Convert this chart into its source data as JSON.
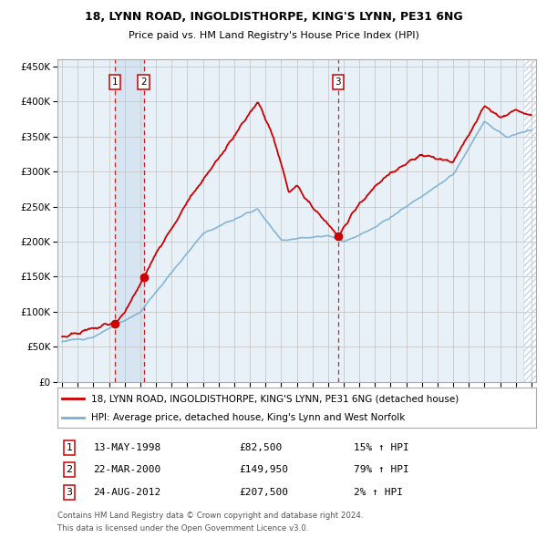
{
  "title": "18, LYNN ROAD, INGOLDISTHORPE, KING'S LYNN, PE31 6NG",
  "subtitle": "Price paid vs. HM Land Registry's House Price Index (HPI)",
  "transactions": [
    {
      "num": 1,
      "date": "13-MAY-1998",
      "price": 82500,
      "year": 1998.37,
      "pct": "15%",
      "dir": "↑"
    },
    {
      "num": 2,
      "date": "22-MAR-2000",
      "price": 149950,
      "year": 2000.22,
      "pct": "79%",
      "dir": "↑"
    },
    {
      "num": 3,
      "date": "24-AUG-2012",
      "price": 207500,
      "year": 2012.64,
      "pct": "2%",
      "dir": "↑"
    }
  ],
  "legend_line1": "18, LYNN ROAD, INGOLDISTHORPE, KING'S LYNN, PE31 6NG (detached house)",
  "legend_line2": "HPI: Average price, detached house, King's Lynn and West Norfolk",
  "footer1": "Contains HM Land Registry data © Crown copyright and database right 2024.",
  "footer2": "This data is licensed under the Open Government Licence v3.0.",
  "ylim": [
    0,
    460000
  ],
  "yticks": [
    0,
    50000,
    100000,
    150000,
    200000,
    250000,
    300000,
    350000,
    400000,
    450000
  ],
  "xlim_start": 1994.7,
  "xlim_end": 2025.3,
  "hpi_color": "#7bafd4",
  "price_color": "#cc0000",
  "shade_color": "#ccdcef",
  "hatch_color": "#c8d4e4",
  "bg_color": "#e8f0f8",
  "grid_color": "#c8c8c8"
}
